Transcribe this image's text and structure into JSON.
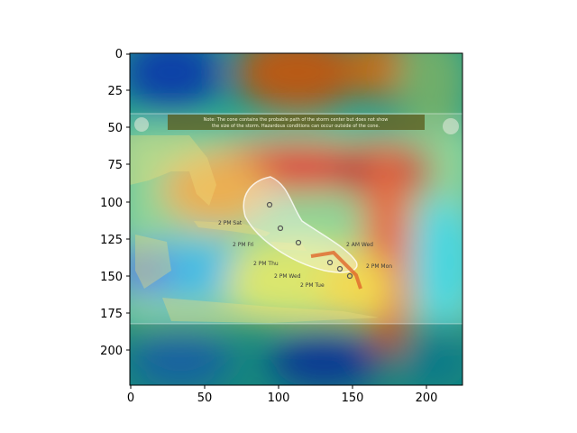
{
  "axes": {
    "x_ticks": [
      "0",
      "50",
      "100",
      "150",
      "200"
    ],
    "y_ticks": [
      "0",
      "25",
      "50",
      "75",
      "100",
      "125",
      "150",
      "175",
      "200"
    ]
  },
  "map": {
    "note_line1": "Note: The cone contains the probable path of the storm center but does not show",
    "note_line2": "the size of the storm. Hazardous conditions can occur outside of the cone.",
    "labels": {
      "sat": "2 PM Sat",
      "fri": "2 PM Fri",
      "thu": "2 PM Thu",
      "wed_left": "2 PM Wed",
      "tue": "2 PM Tue",
      "am_wed": "2 AM Wed",
      "mon": "2 PM Mon"
    }
  },
  "colors": {
    "heat_red": "#d7261e",
    "heat_yellow": "#e8e23a",
    "heat_cyan": "#2fd2dc",
    "heat_blue": "#0b3fa8",
    "heat_teal": "#1a9a8f"
  }
}
